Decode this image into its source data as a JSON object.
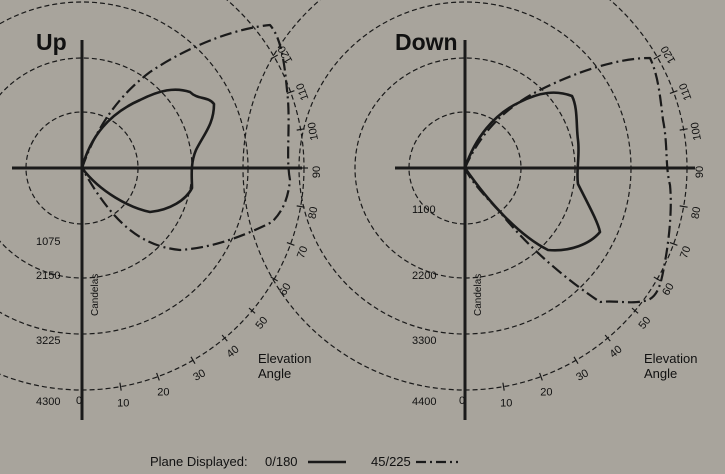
{
  "panels": [
    {
      "id": "up",
      "title": "Up",
      "radial_labels": [
        "1075",
        "2150",
        "3225",
        "4300"
      ],
      "elevation_title": [
        "Elevation",
        "Angle"
      ]
    },
    {
      "id": "down",
      "title": "Down",
      "radial_labels": [
        "1100",
        "2200",
        "3300",
        "4400"
      ],
      "elevation_title": [
        "Elevation",
        "Angle"
      ]
    }
  ],
  "candelas_label": "Candelas",
  "angle_ticks": [
    "0",
    "10",
    "20",
    "30",
    "40",
    "50",
    "60",
    "70",
    "80",
    "90",
    "100",
    "110",
    "120"
  ],
  "legend": {
    "prefix": "Plane Displayed:",
    "items": [
      {
        "label": "0/180",
        "style": "solid"
      },
      {
        "label": "45/225",
        "style": "dash-dot"
      }
    ]
  },
  "chart_data": [
    {
      "type": "polar-candela",
      "panel": "Up",
      "radial_ticks": [
        1075,
        2150,
        3225,
        4300
      ],
      "radial_max": 4300,
      "angle_ticks_deg": [
        0,
        10,
        20,
        30,
        40,
        50,
        60,
        70,
        80,
        90,
        100,
        110,
        120
      ],
      "series": [
        {
          "name": "0/180",
          "angles_deg": [
            0,
            10,
            20,
            30,
            40,
            50,
            60,
            70,
            80,
            90,
            100,
            110,
            120,
            130,
            140,
            150,
            160,
            170,
            180
          ],
          "values": [
            0,
            250,
            520,
            830,
            1200,
            1620,
            1900,
            2050,
            2080,
            2010,
            2020,
            2150,
            2300,
            2500,
            2700,
            2850,
            2900,
            2950,
            3000
          ]
        },
        {
          "name": "45/225",
          "angles_deg": [
            0,
            10,
            20,
            30,
            40,
            50,
            60,
            70,
            80,
            90,
            100,
            110,
            120,
            130,
            140,
            150,
            160
          ],
          "values": [
            0,
            200,
            700,
            1500,
            2400,
            3300,
            3900,
            4150,
            4280,
            4250,
            4300,
            4350,
            4400,
            4450,
            4500,
            4550,
            4600
          ]
        }
      ]
    },
    {
      "type": "polar-candela",
      "panel": "Down",
      "radial_ticks": [
        1100,
        2200,
        3300,
        4400
      ],
      "radial_max": 4400,
      "angle_ticks_deg": [
        0,
        10,
        20,
        30,
        40,
        50,
        60,
        70,
        80,
        90,
        100,
        110,
        120
      ],
      "series": [
        {
          "name": "0/180",
          "angles_deg": [
            0,
            10,
            20,
            30,
            40,
            50,
            60,
            70,
            80,
            90,
            100,
            110,
            120,
            130,
            140
          ],
          "values": [
            0,
            350,
            850,
            1450,
            2000,
            2400,
            2450,
            2300,
            2250,
            2300,
            2350,
            2400,
            2420,
            2450,
            2500
          ]
        },
        {
          "name": "45/225",
          "angles_deg": [
            0,
            10,
            20,
            30,
            40,
            50,
            60,
            70,
            80,
            90,
            100,
            110,
            120,
            130
          ],
          "values": [
            0,
            300,
            900,
            1800,
            2900,
            3800,
            4300,
            4350,
            4380,
            4400,
            4300,
            4200,
            4100,
            4000
          ]
        }
      ]
    }
  ]
}
